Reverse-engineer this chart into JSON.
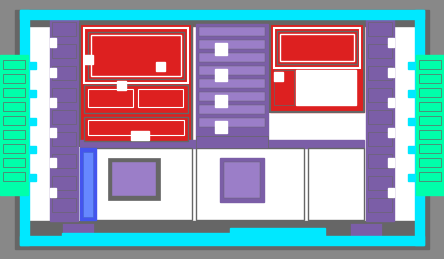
{
  "bg": "#888888",
  "cyan": "#00e8ff",
  "purple": "#7b5ea7",
  "red": "#dd2020",
  "green": "#00ffaa",
  "blue": "#4455ee",
  "white": "#ffffff",
  "lgray": "#aaaaaa",
  "dgray": "#666666",
  "lpurple": "#9b7ec8",
  "figsize": [
    4.44,
    2.59
  ],
  "dpi": 100
}
